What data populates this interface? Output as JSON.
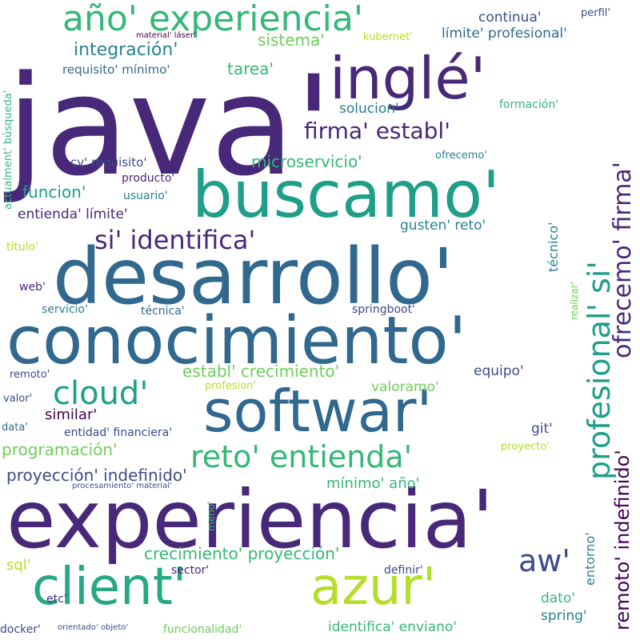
{
  "palette": {
    "c1": "#440154",
    "c2": "#482878",
    "c3": "#3e4a89",
    "c4": "#31688e",
    "c5": "#26828e",
    "c6": "#1f9e89",
    "c7": "#35b779",
    "c8": "#6ece58",
    "c9": "#b5de2b"
  },
  "words": [
    {
      "text": "java'",
      "color": "#482878",
      "size": 172
    },
    {
      "text": "experiencia'",
      "color": "#482878",
      "size": 100
    },
    {
      "text": "conocimiento'",
      "color": "#31688e",
      "size": 82
    },
    {
      "text": "desarrollo'",
      "color": "#31688e",
      "size": 96
    },
    {
      "text": "buscamo'",
      "color": "#1f9e89",
      "size": 80
    },
    {
      "text": "softwar'",
      "color": "#31688e",
      "size": 72
    },
    {
      "text": "inglé'",
      "color": "#482878",
      "size": 72
    },
    {
      "text": "client'",
      "color": "#26a884",
      "size": 64
    },
    {
      "text": "azur'",
      "color": "#b5de2b",
      "size": 64
    },
    {
      "text": "año' experiencia'",
      "color": "#35b779",
      "size": 44
    },
    {
      "text": "profesional' si'",
      "color": "#1f9e89",
      "size": 38
    },
    {
      "text": "ofrecemo' firma'",
      "color": "#482878",
      "size": 30
    },
    {
      "text": "reto' entienda'",
      "color": "#35b779",
      "size": 38
    },
    {
      "text": "cloud'",
      "color": "#1f9e89",
      "size": 40
    },
    {
      "text": "aw'",
      "color": "#3e4a89",
      "size": 38
    },
    {
      "text": "si' identifica'",
      "color": "#482878",
      "size": 32
    },
    {
      "text": "firma' establ'",
      "color": "#482878",
      "size": 28
    },
    {
      "text": "remoto' indefinido'",
      "color": "#440154",
      "size": 24
    },
    {
      "text": "integración'",
      "color": "#26828e",
      "size": 22
    },
    {
      "text": "microservicio'",
      "color": "#35b779",
      "size": 20
    },
    {
      "text": "sistema'",
      "color": "#6ece58",
      "size": 20
    },
    {
      "text": "tarea'",
      "color": "#35b779",
      "size": 20
    },
    {
      "text": "crecimiento' proyección'",
      "color": "#35b779",
      "size": 20
    },
    {
      "text": "establ' crecimiento'",
      "color": "#6ece58",
      "size": 20
    },
    {
      "text": "programación'",
      "color": "#6ece58",
      "size": 20
    },
    {
      "text": "proyección' indefinido'",
      "color": "#3e4a89",
      "size": 20
    },
    {
      "text": "funcion'",
      "color": "#1f9e89",
      "size": 20
    },
    {
      "text": "similar'",
      "color": "#440154",
      "size": 18
    },
    {
      "text": "entienda' límite'",
      "color": "#482878",
      "size": 17
    },
    {
      "text": "continua'",
      "color": "#3e4a89",
      "size": 17
    },
    {
      "text": "límite' profesional'",
      "color": "#31688e",
      "size": 17
    },
    {
      "text": "solucion'",
      "color": "#26828e",
      "size": 17
    },
    {
      "text": "mínimo' año'",
      "color": "#35b779",
      "size": 18
    },
    {
      "text": "gusten' reto'",
      "color": "#26828e",
      "size": 17
    },
    {
      "text": "equipo'",
      "color": "#3e4a89",
      "size": 17
    },
    {
      "text": "valoramo'",
      "color": "#6ece58",
      "size": 17
    },
    {
      "text": "git'",
      "color": "#3e4a89",
      "size": 17
    },
    {
      "text": "sql'",
      "color": "#b5de2b",
      "size": 18
    },
    {
      "text": "dato'",
      "color": "#35b779",
      "size": 17
    },
    {
      "text": "spring'",
      "color": "#26828e",
      "size": 17
    },
    {
      "text": "identifica' enviano'",
      "color": "#35b779",
      "size": 17
    },
    {
      "text": "técnico'",
      "color": "#26828e",
      "size": 16
    },
    {
      "text": "entorno'",
      "color": "#26828e",
      "size": 16
    },
    {
      "text": "cv' requisito'",
      "color": "#3e4a89",
      "size": 15
    },
    {
      "text": "requisito' mínimo'",
      "color": "#31688e",
      "size": 15
    },
    {
      "text": "producto'",
      "color": "#482878",
      "size": 14
    },
    {
      "text": "usuario'",
      "color": "#26828e",
      "size": 14
    },
    {
      "text": "springboot'",
      "color": "#3e4a89",
      "size": 14
    },
    {
      "text": "técnica'",
      "color": "#31688e",
      "size": 14
    },
    {
      "text": "servicio'",
      "color": "#26828e",
      "size": 14
    },
    {
      "text": "web'",
      "color": "#482878",
      "size": 14
    },
    {
      "text": "título'",
      "color": "#b5de2b",
      "size": 14
    },
    {
      "text": "actualment' búsqueda'",
      "color": "#35b779",
      "size": 13
    },
    {
      "text": "remoto'",
      "color": "#3e4a89",
      "size": 13
    },
    {
      "text": "valor'",
      "color": "#3e4a89",
      "size": 13
    },
    {
      "text": "data'",
      "color": "#31688e",
      "size": 13
    },
    {
      "text": "entidad' financiera'",
      "color": "#3e4a89",
      "size": 14
    },
    {
      "text": "profesion'",
      "color": "#b5de2b",
      "size": 13
    },
    {
      "text": "ofrecemo'",
      "color": "#26828e",
      "size": 13
    },
    {
      "text": "formación'",
      "color": "#35b779",
      "size": 14
    },
    {
      "text": "perfil'",
      "color": "#3e4a89",
      "size": 13
    },
    {
      "text": "kubernet'",
      "color": "#b5de2b",
      "size": 13
    },
    {
      "text": "material' láser'",
      "color": "#440154",
      "size": 10
    },
    {
      "text": "procesamiento' material'",
      "color": "#3e4a89",
      "size": 10
    },
    {
      "text": "realizar'",
      "color": "#6ece58",
      "size": 12
    },
    {
      "text": "proyecto'",
      "color": "#b5de2b",
      "size": 13
    },
    {
      "text": "meno'",
      "color": "#35b779",
      "size": 12
    },
    {
      "text": "sector'",
      "color": "#482878",
      "size": 14
    },
    {
      "text": "definir'",
      "color": "#3e4a89",
      "size": 14
    },
    {
      "text": "etc'",
      "color": "#482878",
      "size": 14
    },
    {
      "text": "docker'",
      "color": "#3e4a89",
      "size": 14
    },
    {
      "text": "orientado' objeto'",
      "color": "#3e4a89",
      "size": 10
    },
    {
      "text": "funcionalidad'",
      "color": "#6ece58",
      "size": 14
    }
  ]
}
